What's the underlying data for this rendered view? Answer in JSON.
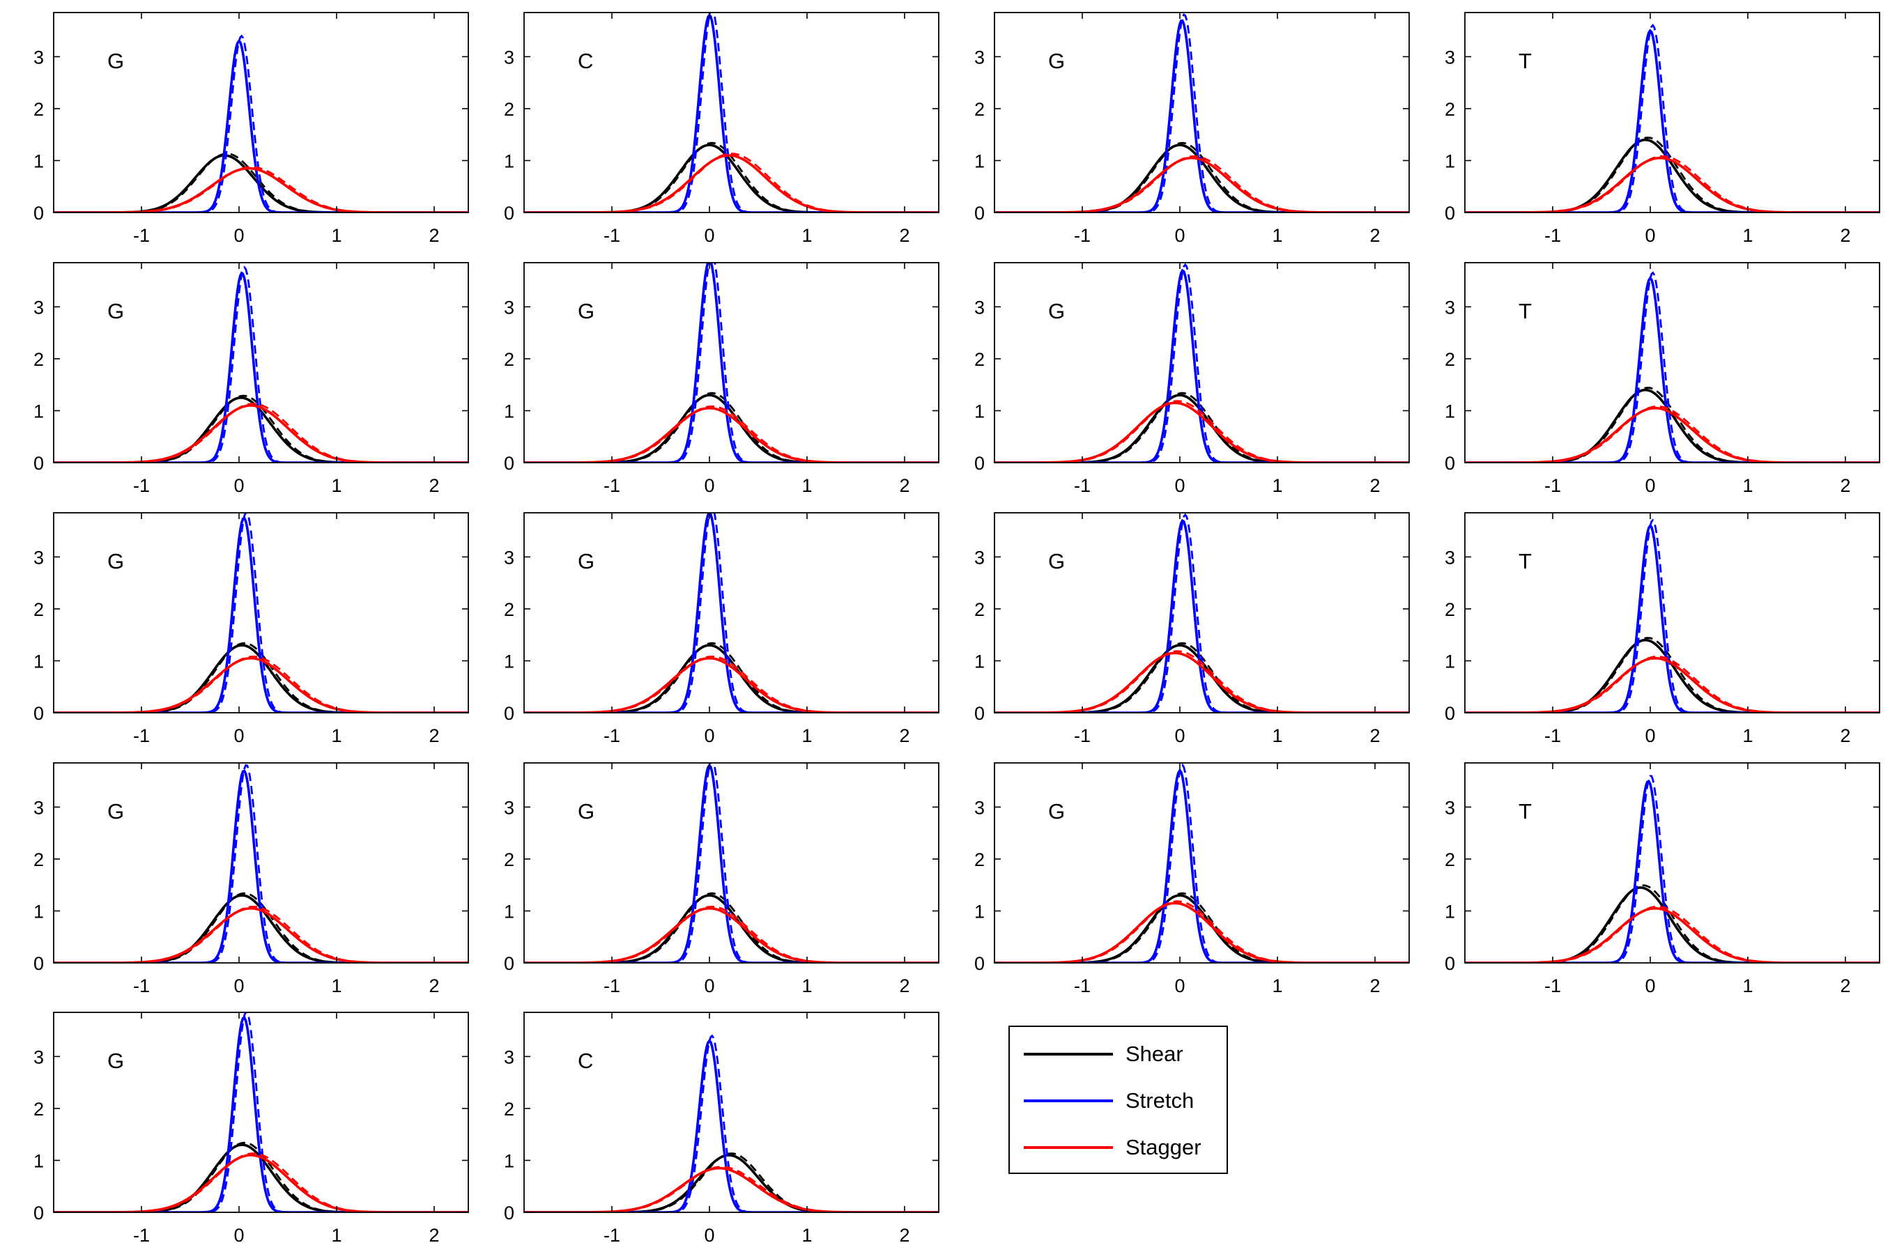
{
  "chart_data": {
    "type": "line",
    "layout": "5x4 grid of small-multiple density plots (18 panels)",
    "x_ticks": [
      -1,
      0,
      1,
      2
    ],
    "y_ticks": [
      0,
      1,
      2,
      3
    ],
    "xlim": [
      -1.9,
      2.35
    ],
    "ylim": [
      0,
      3.85
    ],
    "xlabel": "",
    "ylabel": "",
    "colors": {
      "Shear": "#000000",
      "Stretch": "#0000ff",
      "Stagger": "#ff0000"
    },
    "legend": {
      "placement": "bottom-row, third column",
      "entries": [
        {
          "name": "Shear",
          "color": "#000000"
        },
        {
          "name": "Stretch",
          "color": "#0000ff"
        },
        {
          "name": "Stagger",
          "color": "#ff0000"
        }
      ]
    },
    "curve_form": "gaussian density; each series drawn as solid plus dashed variant",
    "panels": [
      {
        "label": "G",
        "series": [
          {
            "name": "Shear",
            "mean": -0.15,
            "peak": 1.1
          },
          {
            "name": "Stretch",
            "mean": 0.0,
            "peak": 3.3
          },
          {
            "name": "Stagger",
            "mean": 0.1,
            "peak": 0.85
          }
        ]
      },
      {
        "label": "C",
        "series": [
          {
            "name": "Shear",
            "mean": 0.0,
            "peak": 1.3
          },
          {
            "name": "Stretch",
            "mean": 0.0,
            "peak": 3.8
          },
          {
            "name": "Stagger",
            "mean": 0.2,
            "peak": 1.1
          }
        ]
      },
      {
        "label": "G",
        "series": [
          {
            "name": "Shear",
            "mean": 0.0,
            "peak": 1.3
          },
          {
            "name": "Stretch",
            "mean": 0.02,
            "peak": 3.7
          },
          {
            "name": "Stagger",
            "mean": 0.12,
            "peak": 1.05
          }
        ]
      },
      {
        "label": "T",
        "series": [
          {
            "name": "Shear",
            "mean": -0.05,
            "peak": 1.4
          },
          {
            "name": "Stretch",
            "mean": 0.0,
            "peak": 3.5
          },
          {
            "name": "Stagger",
            "mean": 0.1,
            "peak": 1.05
          }
        ]
      },
      {
        "label": "G",
        "series": [
          {
            "name": "Shear",
            "mean": 0.02,
            "peak": 1.25
          },
          {
            "name": "Stretch",
            "mean": 0.03,
            "peak": 3.65
          },
          {
            "name": "Stagger",
            "mean": 0.12,
            "peak": 1.1
          }
        ]
      },
      {
        "label": "G",
        "series": [
          {
            "name": "Shear",
            "mean": 0.0,
            "peak": 1.3
          },
          {
            "name": "Stretch",
            "mean": 0.0,
            "peak": 3.9
          },
          {
            "name": "Stagger",
            "mean": 0.0,
            "peak": 1.05
          }
        ]
      },
      {
        "label": "G",
        "series": [
          {
            "name": "Shear",
            "mean": 0.0,
            "peak": 1.3
          },
          {
            "name": "Stretch",
            "mean": 0.03,
            "peak": 3.7
          },
          {
            "name": "Stagger",
            "mean": -0.05,
            "peak": 1.15
          }
        ]
      },
      {
        "label": "T",
        "series": [
          {
            "name": "Shear",
            "mean": -0.05,
            "peak": 1.4
          },
          {
            "name": "Stretch",
            "mean": 0.0,
            "peak": 3.55
          },
          {
            "name": "Stagger",
            "mean": 0.05,
            "peak": 1.05
          }
        ]
      },
      {
        "label": "G",
        "series": [
          {
            "name": "Shear",
            "mean": 0.03,
            "peak": 1.3
          },
          {
            "name": "Stretch",
            "mean": 0.05,
            "peak": 3.75
          },
          {
            "name": "Stagger",
            "mean": 0.12,
            "peak": 1.05
          }
        ]
      },
      {
        "label": "G",
        "series": [
          {
            "name": "Shear",
            "mean": 0.0,
            "peak": 1.3
          },
          {
            "name": "Stretch",
            "mean": 0.0,
            "peak": 3.85
          },
          {
            "name": "Stagger",
            "mean": 0.0,
            "peak": 1.05
          }
        ]
      },
      {
        "label": "G",
        "series": [
          {
            "name": "Shear",
            "mean": 0.0,
            "peak": 1.3
          },
          {
            "name": "Stretch",
            "mean": 0.03,
            "peak": 3.7
          },
          {
            "name": "Stagger",
            "mean": -0.05,
            "peak": 1.15
          }
        ]
      },
      {
        "label": "T",
        "series": [
          {
            "name": "Shear",
            "mean": -0.05,
            "peak": 1.4
          },
          {
            "name": "Stretch",
            "mean": 0.0,
            "peak": 3.6
          },
          {
            "name": "Stagger",
            "mean": 0.05,
            "peak": 1.05
          }
        ]
      },
      {
        "label": "G",
        "series": [
          {
            "name": "Shear",
            "mean": 0.03,
            "peak": 1.3
          },
          {
            "name": "Stretch",
            "mean": 0.05,
            "peak": 3.7
          },
          {
            "name": "Stagger",
            "mean": 0.12,
            "peak": 1.05
          }
        ]
      },
      {
        "label": "G",
        "series": [
          {
            "name": "Shear",
            "mean": 0.0,
            "peak": 1.3
          },
          {
            "name": "Stretch",
            "mean": 0.0,
            "peak": 3.8
          },
          {
            "name": "Stagger",
            "mean": 0.0,
            "peak": 1.05
          }
        ]
      },
      {
        "label": "G",
        "series": [
          {
            "name": "Shear",
            "mean": 0.0,
            "peak": 1.3
          },
          {
            "name": "Stretch",
            "mean": 0.0,
            "peak": 3.7
          },
          {
            "name": "Stagger",
            "mean": -0.05,
            "peak": 1.15
          }
        ]
      },
      {
        "label": "T",
        "series": [
          {
            "name": "Shear",
            "mean": -0.1,
            "peak": 1.45
          },
          {
            "name": "Stretch",
            "mean": -0.02,
            "peak": 3.5
          },
          {
            "name": "Stagger",
            "mean": 0.05,
            "peak": 1.05
          }
        ]
      },
      {
        "label": "G",
        "series": [
          {
            "name": "Shear",
            "mean": 0.03,
            "peak": 1.3
          },
          {
            "name": "Stretch",
            "mean": 0.05,
            "peak": 3.75
          },
          {
            "name": "Stagger",
            "mean": 0.12,
            "peak": 1.1
          }
        ]
      },
      {
        "label": "C",
        "series": [
          {
            "name": "Shear",
            "mean": 0.2,
            "peak": 1.1
          },
          {
            "name": "Stretch",
            "mean": 0.0,
            "peak": 3.3
          },
          {
            "name": "Stagger",
            "mean": 0.1,
            "peak": 0.85
          }
        ]
      }
    ]
  }
}
